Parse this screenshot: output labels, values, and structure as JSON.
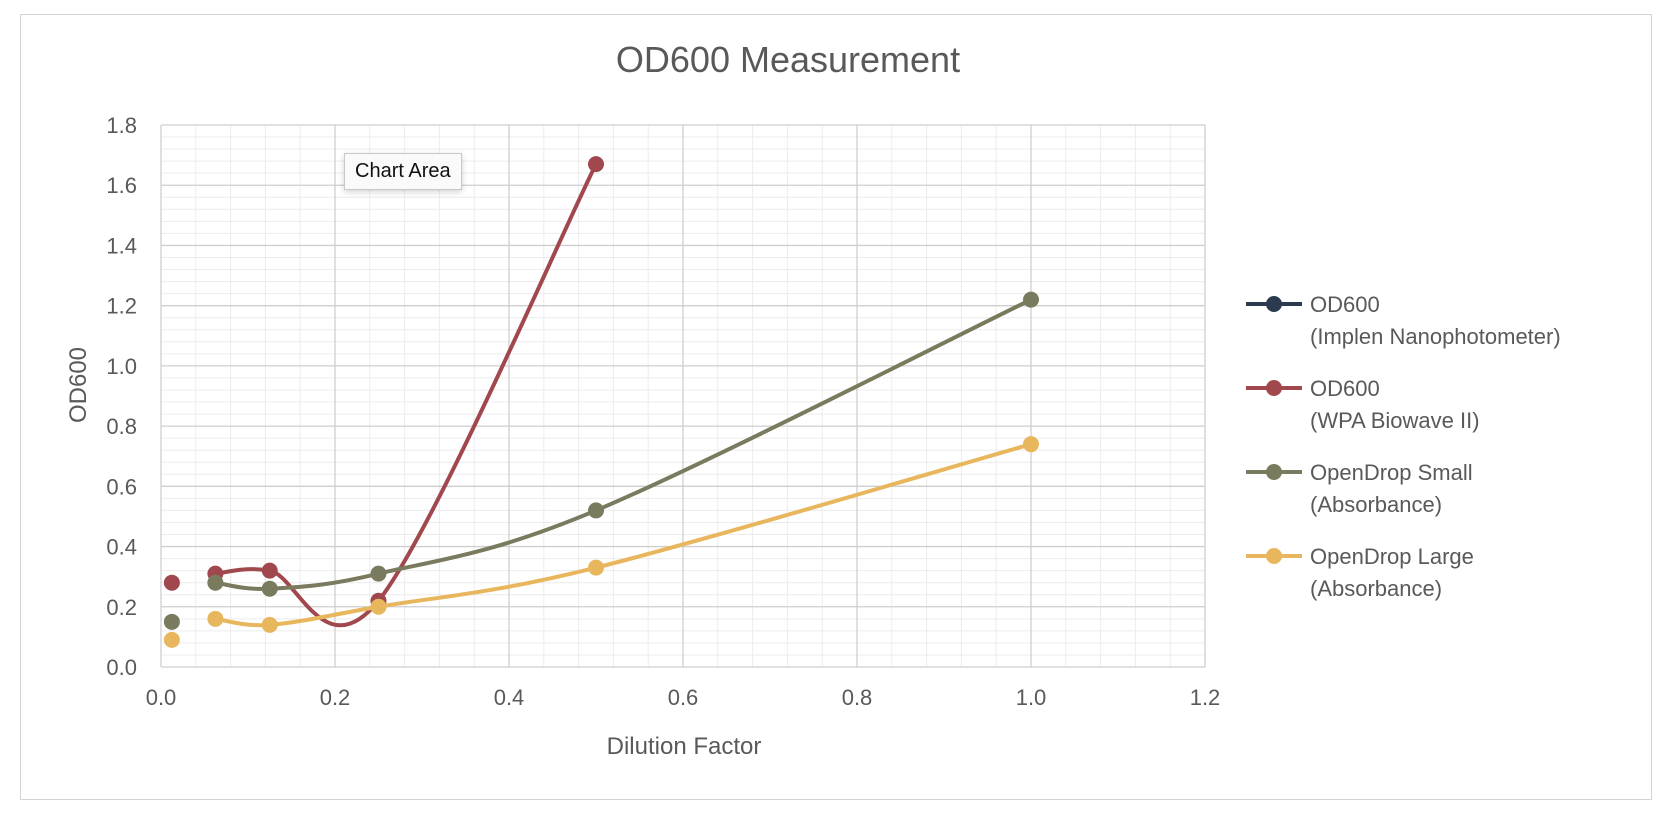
{
  "chart_data": {
    "type": "line",
    "title": "OD600 Measurement",
    "xlabel": "Dilution Factor",
    "ylabel": "OD600",
    "xlim": [
      0,
      1.2
    ],
    "ylim": [
      0,
      1.8
    ],
    "x_ticks": [
      "0.0",
      "0.2",
      "0.4",
      "0.6",
      "0.8",
      "1.0",
      "1.2"
    ],
    "y_ticks": [
      "0.0",
      "0.2",
      "0.4",
      "0.6",
      "0.8",
      "1.0",
      "1.2",
      "1.4",
      "1.6",
      "1.8"
    ],
    "grid": true,
    "minor_grid": true,
    "smooth": true,
    "legend_position": "right",
    "series": [
      {
        "name": "OD600",
        "name_line2": "(Implen Nanophotometer)",
        "color": "#2a3a4f",
        "points": []
      },
      {
        "name": "OD600",
        "name_line2": "(WPA Biowave II)",
        "color": "#a0484d",
        "points": [
          {
            "x": 0.0125,
            "y": 0.28
          },
          {
            "x": 0.0625,
            "y": 0.31
          },
          {
            "x": 0.125,
            "y": 0.32
          },
          {
            "x": 0.25,
            "y": 0.22
          },
          {
            "x": 0.5,
            "y": 1.67
          }
        ]
      },
      {
        "name": "OpenDrop Small",
        "name_line2": "(Absorbance)",
        "color": "#7a7a5e",
        "points": [
          {
            "x": 0.0125,
            "y": 0.15
          },
          {
            "x": 0.0625,
            "y": 0.28
          },
          {
            "x": 0.125,
            "y": 0.26
          },
          {
            "x": 0.25,
            "y": 0.31
          },
          {
            "x": 0.5,
            "y": 0.52
          },
          {
            "x": 1.0,
            "y": 1.22
          }
        ]
      },
      {
        "name": "OpenDrop Large",
        "name_line2": "(Absorbance)",
        "color": "#e8b65c",
        "points": [
          {
            "x": 0.0125,
            "y": 0.09
          },
          {
            "x": 0.0625,
            "y": 0.16
          },
          {
            "x": 0.125,
            "y": 0.14
          },
          {
            "x": 0.25,
            "y": 0.2
          },
          {
            "x": 0.5,
            "y": 0.33
          },
          {
            "x": 1.0,
            "y": 0.74
          }
        ]
      }
    ]
  },
  "tooltip": {
    "label": "Chart Area"
  }
}
